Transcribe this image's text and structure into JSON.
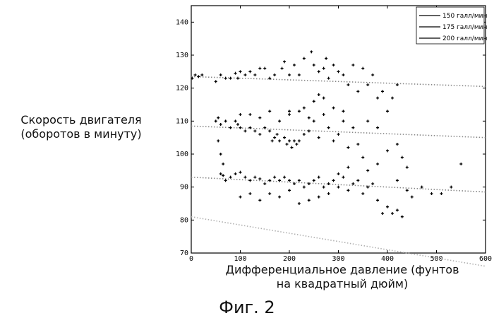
{
  "figure": {
    "caption": "Фиг. 2",
    "ylabel": "Скорость двигателя\n(оборотов в минуту)",
    "xlabel": "Дифференциальное давление (фунтов\nна квадратный дюйм)"
  },
  "chart_data": {
    "type": "scatter",
    "xlim": [
      0,
      600
    ],
    "ylim": [
      70,
      145
    ],
    "xticks": [
      0,
      100,
      200,
      300,
      400,
      500,
      600
    ],
    "yticks": [
      70,
      80,
      90,
      100,
      110,
      120,
      130,
      140
    ],
    "grid": false,
    "legend_position": "top-right",
    "series": [
      {
        "name": "150 галл/мин",
        "color": "#000000",
        "trend": [
          [
            0,
            123.5
          ],
          [
            600,
            120.5
          ]
        ],
        "points": [
          [
            2,
            123
          ],
          [
            8,
            124
          ],
          [
            15,
            123.5
          ],
          [
            22,
            124
          ],
          [
            50,
            122
          ],
          [
            60,
            124
          ],
          [
            70,
            123
          ],
          [
            80,
            123
          ],
          [
            90,
            124.5
          ],
          [
            95,
            123
          ],
          [
            100,
            125
          ],
          [
            110,
            124
          ],
          [
            120,
            125
          ],
          [
            130,
            124
          ],
          [
            140,
            126
          ],
          [
            150,
            126
          ],
          [
            160,
            123
          ],
          [
            170,
            124
          ],
          [
            185,
            126
          ],
          [
            190,
            128
          ],
          [
            200,
            124
          ],
          [
            210,
            127
          ],
          [
            220,
            124
          ],
          [
            230,
            129
          ],
          [
            245,
            131
          ],
          [
            250,
            127
          ],
          [
            260,
            125
          ],
          [
            270,
            126
          ],
          [
            275,
            129
          ],
          [
            280,
            123
          ],
          [
            290,
            127
          ],
          [
            300,
            125
          ],
          [
            310,
            124
          ],
          [
            320,
            121
          ],
          [
            330,
            127
          ],
          [
            340,
            119
          ],
          [
            350,
            126
          ],
          [
            360,
            121
          ],
          [
            370,
            124
          ],
          [
            380,
            117
          ],
          [
            390,
            119
          ],
          [
            400,
            113
          ],
          [
            410,
            117
          ],
          [
            420,
            121
          ],
          [
            200,
            113
          ],
          [
            230,
            114
          ],
          [
            250,
            116
          ],
          [
            260,
            118
          ],
          [
            270,
            117
          ],
          [
            290,
            114
          ],
          [
            310,
            113
          ]
        ]
      },
      {
        "name": "175 галл/мин",
        "color": "#000000",
        "trend": [
          [
            0,
            108.5
          ],
          [
            600,
            105
          ]
        ],
        "points": [
          [
            50,
            110
          ],
          [
            55,
            111
          ],
          [
            60,
            109
          ],
          [
            70,
            110
          ],
          [
            80,
            108
          ],
          [
            90,
            110
          ],
          [
            95,
            109
          ],
          [
            100,
            108
          ],
          [
            110,
            107
          ],
          [
            120,
            108
          ],
          [
            130,
            107
          ],
          [
            140,
            106
          ],
          [
            150,
            108
          ],
          [
            160,
            107
          ],
          [
            165,
            104
          ],
          [
            170,
            105
          ],
          [
            175,
            106
          ],
          [
            180,
            104
          ],
          [
            190,
            105
          ],
          [
            195,
            103
          ],
          [
            200,
            104
          ],
          [
            205,
            102
          ],
          [
            210,
            104
          ],
          [
            215,
            103
          ],
          [
            220,
            104
          ],
          [
            230,
            106
          ],
          [
            240,
            107
          ],
          [
            250,
            110
          ],
          [
            260,
            105
          ],
          [
            270,
            112
          ],
          [
            280,
            108
          ],
          [
            290,
            104
          ],
          [
            300,
            106
          ],
          [
            310,
            110
          ],
          [
            320,
            102
          ],
          [
            330,
            108
          ],
          [
            340,
            103
          ],
          [
            350,
            99
          ],
          [
            360,
            110
          ],
          [
            380,
            108
          ],
          [
            400,
            101
          ],
          [
            420,
            103
          ],
          [
            430,
            99
          ],
          [
            55,
            104
          ],
          [
            60,
            100
          ],
          [
            65,
            97
          ],
          [
            100,
            112
          ],
          [
            120,
            112
          ],
          [
            140,
            111
          ],
          [
            160,
            113
          ],
          [
            180,
            110
          ],
          [
            200,
            112
          ],
          [
            220,
            113
          ],
          [
            240,
            111
          ]
        ]
      },
      {
        "name": "200 галл/мин",
        "color": "#000000",
        "trend": [
          [
            0,
            93
          ],
          [
            600,
            88.5
          ]
        ],
        "points": [
          [
            60,
            94
          ],
          [
            65,
            93.5
          ],
          [
            70,
            92
          ],
          [
            80,
            93
          ],
          [
            90,
            94
          ],
          [
            100,
            94.5
          ],
          [
            110,
            93
          ],
          [
            120,
            92
          ],
          [
            130,
            93
          ],
          [
            140,
            92.5
          ],
          [
            150,
            91
          ],
          [
            160,
            92
          ],
          [
            170,
            93
          ],
          [
            180,
            92
          ],
          [
            190,
            93
          ],
          [
            200,
            92
          ],
          [
            210,
            91
          ],
          [
            220,
            92
          ],
          [
            230,
            90
          ],
          [
            240,
            91
          ],
          [
            250,
            92
          ],
          [
            260,
            93
          ],
          [
            270,
            90
          ],
          [
            280,
            91
          ],
          [
            290,
            92
          ],
          [
            300,
            90
          ],
          [
            310,
            93
          ],
          [
            320,
            89
          ],
          [
            330,
            91
          ],
          [
            340,
            92
          ],
          [
            350,
            88
          ],
          [
            360,
            90
          ],
          [
            370,
            91
          ],
          [
            380,
            86
          ],
          [
            390,
            82
          ],
          [
            400,
            84
          ],
          [
            410,
            82
          ],
          [
            420,
            83
          ],
          [
            430,
            81
          ],
          [
            440,
            89
          ],
          [
            450,
            87
          ],
          [
            470,
            90
          ],
          [
            490,
            88
          ],
          [
            510,
            88
          ],
          [
            530,
            90
          ],
          [
            550,
            97
          ],
          [
            100,
            87
          ],
          [
            120,
            88
          ],
          [
            140,
            86
          ],
          [
            160,
            88
          ],
          [
            180,
            87
          ],
          [
            200,
            89
          ],
          [
            220,
            85
          ],
          [
            240,
            86
          ],
          [
            260,
            87
          ],
          [
            280,
            88
          ],
          [
            300,
            94
          ],
          [
            320,
            96
          ],
          [
            360,
            95
          ],
          [
            380,
            97
          ],
          [
            420,
            92
          ],
          [
            440,
            96
          ]
        ]
      },
      {
        "name": "",
        "color": "#9a9a9a",
        "trend": [
          [
            0,
            81
          ],
          [
            600,
            66
          ]
        ],
        "points": []
      }
    ]
  }
}
